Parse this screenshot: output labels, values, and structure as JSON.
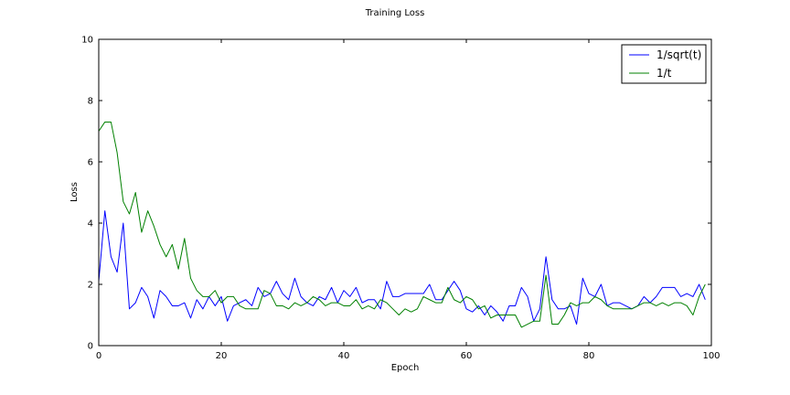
{
  "chart_data": {
    "type": "line",
    "title": "Training Loss",
    "xlabel": "Epoch",
    "ylabel": "Loss",
    "xlim": [
      0,
      100
    ],
    "ylim": [
      0,
      10
    ],
    "xticks": [
      0,
      20,
      40,
      60,
      80,
      100
    ],
    "yticks": [
      0,
      2,
      4,
      6,
      8,
      10
    ],
    "grid": false,
    "legend_position": "top-right",
    "series": [
      {
        "name": "1/sqrt(t)",
        "color": "#0000ff",
        "x": [
          0,
          1,
          2,
          3,
          4,
          5,
          6,
          7,
          8,
          9,
          10,
          11,
          12,
          13,
          14,
          15,
          16,
          17,
          18,
          19,
          20,
          21,
          22,
          23,
          24,
          25,
          26,
          27,
          28,
          29,
          30,
          31,
          32,
          33,
          34,
          35,
          36,
          37,
          38,
          39,
          40,
          41,
          42,
          43,
          44,
          45,
          46,
          47,
          48,
          49,
          50,
          51,
          52,
          53,
          54,
          55,
          56,
          57,
          58,
          59,
          60,
          61,
          62,
          63,
          64,
          65,
          66,
          67,
          68,
          69,
          70,
          71,
          72,
          73,
          74,
          75,
          76,
          77,
          78,
          79,
          80,
          81,
          82,
          83,
          84,
          85,
          86,
          87,
          88,
          89,
          90,
          91,
          92,
          93,
          94,
          95,
          96,
          97,
          98,
          99
        ],
        "values": [
          2.1,
          4.4,
          2.9,
          2.4,
          4.0,
          1.2,
          1.4,
          1.9,
          1.6,
          0.9,
          1.8,
          1.6,
          1.3,
          1.3,
          1.4,
          0.9,
          1.5,
          1.2,
          1.6,
          1.3,
          1.6,
          0.8,
          1.3,
          1.4,
          1.5,
          1.3,
          1.9,
          1.6,
          1.7,
          2.1,
          1.7,
          1.5,
          2.2,
          1.6,
          1.4,
          1.3,
          1.6,
          1.5,
          1.9,
          1.4,
          1.8,
          1.6,
          1.9,
          1.4,
          1.5,
          1.5,
          1.2,
          2.1,
          1.6,
          1.6,
          1.7,
          1.7,
          1.7,
          1.7,
          2.0,
          1.5,
          1.5,
          1.8,
          2.1,
          1.8,
          1.2,
          1.1,
          1.3,
          1.0,
          1.3,
          1.1,
          0.8,
          1.3,
          1.3,
          1.9,
          1.6,
          0.8,
          1.2,
          2.9,
          1.5,
          1.2,
          1.2,
          1.3,
          0.7,
          2.2,
          1.7,
          1.6,
          2.0,
          1.3,
          1.4,
          1.4,
          1.3,
          1.2,
          1.3,
          1.6,
          1.4,
          1.6,
          1.9,
          1.9,
          1.9,
          1.6,
          1.7,
          1.6,
          2.0,
          1.5
        ]
      },
      {
        "name": "1/t",
        "color": "#008000",
        "x": [
          0,
          1,
          2,
          3,
          4,
          5,
          6,
          7,
          8,
          9,
          10,
          11,
          12,
          13,
          14,
          15,
          16,
          17,
          18,
          19,
          20,
          21,
          22,
          23,
          24,
          25,
          26,
          27,
          28,
          29,
          30,
          31,
          32,
          33,
          34,
          35,
          36,
          37,
          38,
          39,
          40,
          41,
          42,
          43,
          44,
          45,
          46,
          47,
          48,
          49,
          50,
          51,
          52,
          53,
          54,
          55,
          56,
          57,
          58,
          59,
          60,
          61,
          62,
          63,
          64,
          65,
          66,
          67,
          68,
          69,
          70,
          71,
          72,
          73,
          74,
          75,
          76,
          77,
          78,
          79,
          80,
          81,
          82,
          83,
          84,
          85,
          86,
          87,
          88,
          89,
          90,
          91,
          92,
          93,
          94,
          95,
          96,
          97,
          98,
          99
        ],
        "values": [
          7.0,
          7.3,
          7.3,
          6.3,
          4.7,
          4.3,
          5.0,
          3.7,
          4.4,
          3.9,
          3.3,
          2.9,
          3.3,
          2.5,
          3.5,
          2.2,
          1.8,
          1.6,
          1.6,
          1.8,
          1.4,
          1.6,
          1.6,
          1.3,
          1.2,
          1.2,
          1.2,
          1.8,
          1.7,
          1.3,
          1.3,
          1.2,
          1.4,
          1.3,
          1.4,
          1.6,
          1.5,
          1.3,
          1.4,
          1.4,
          1.3,
          1.3,
          1.5,
          1.2,
          1.3,
          1.2,
          1.5,
          1.4,
          1.2,
          1.0,
          1.2,
          1.1,
          1.2,
          1.6,
          1.5,
          1.4,
          1.4,
          1.9,
          1.5,
          1.4,
          1.6,
          1.5,
          1.2,
          1.3,
          0.9,
          1.0,
          1.0,
          1.0,
          1.0,
          0.6,
          0.7,
          0.8,
          0.8,
          2.3,
          0.7,
          0.7,
          1.0,
          1.4,
          1.3,
          1.4,
          1.4,
          1.6,
          1.5,
          1.3,
          1.2,
          1.2,
          1.2,
          1.2,
          1.3,
          1.4,
          1.4,
          1.3,
          1.4,
          1.3,
          1.4,
          1.4,
          1.3,
          1.0,
          1.6,
          2.0
        ]
      }
    ]
  }
}
